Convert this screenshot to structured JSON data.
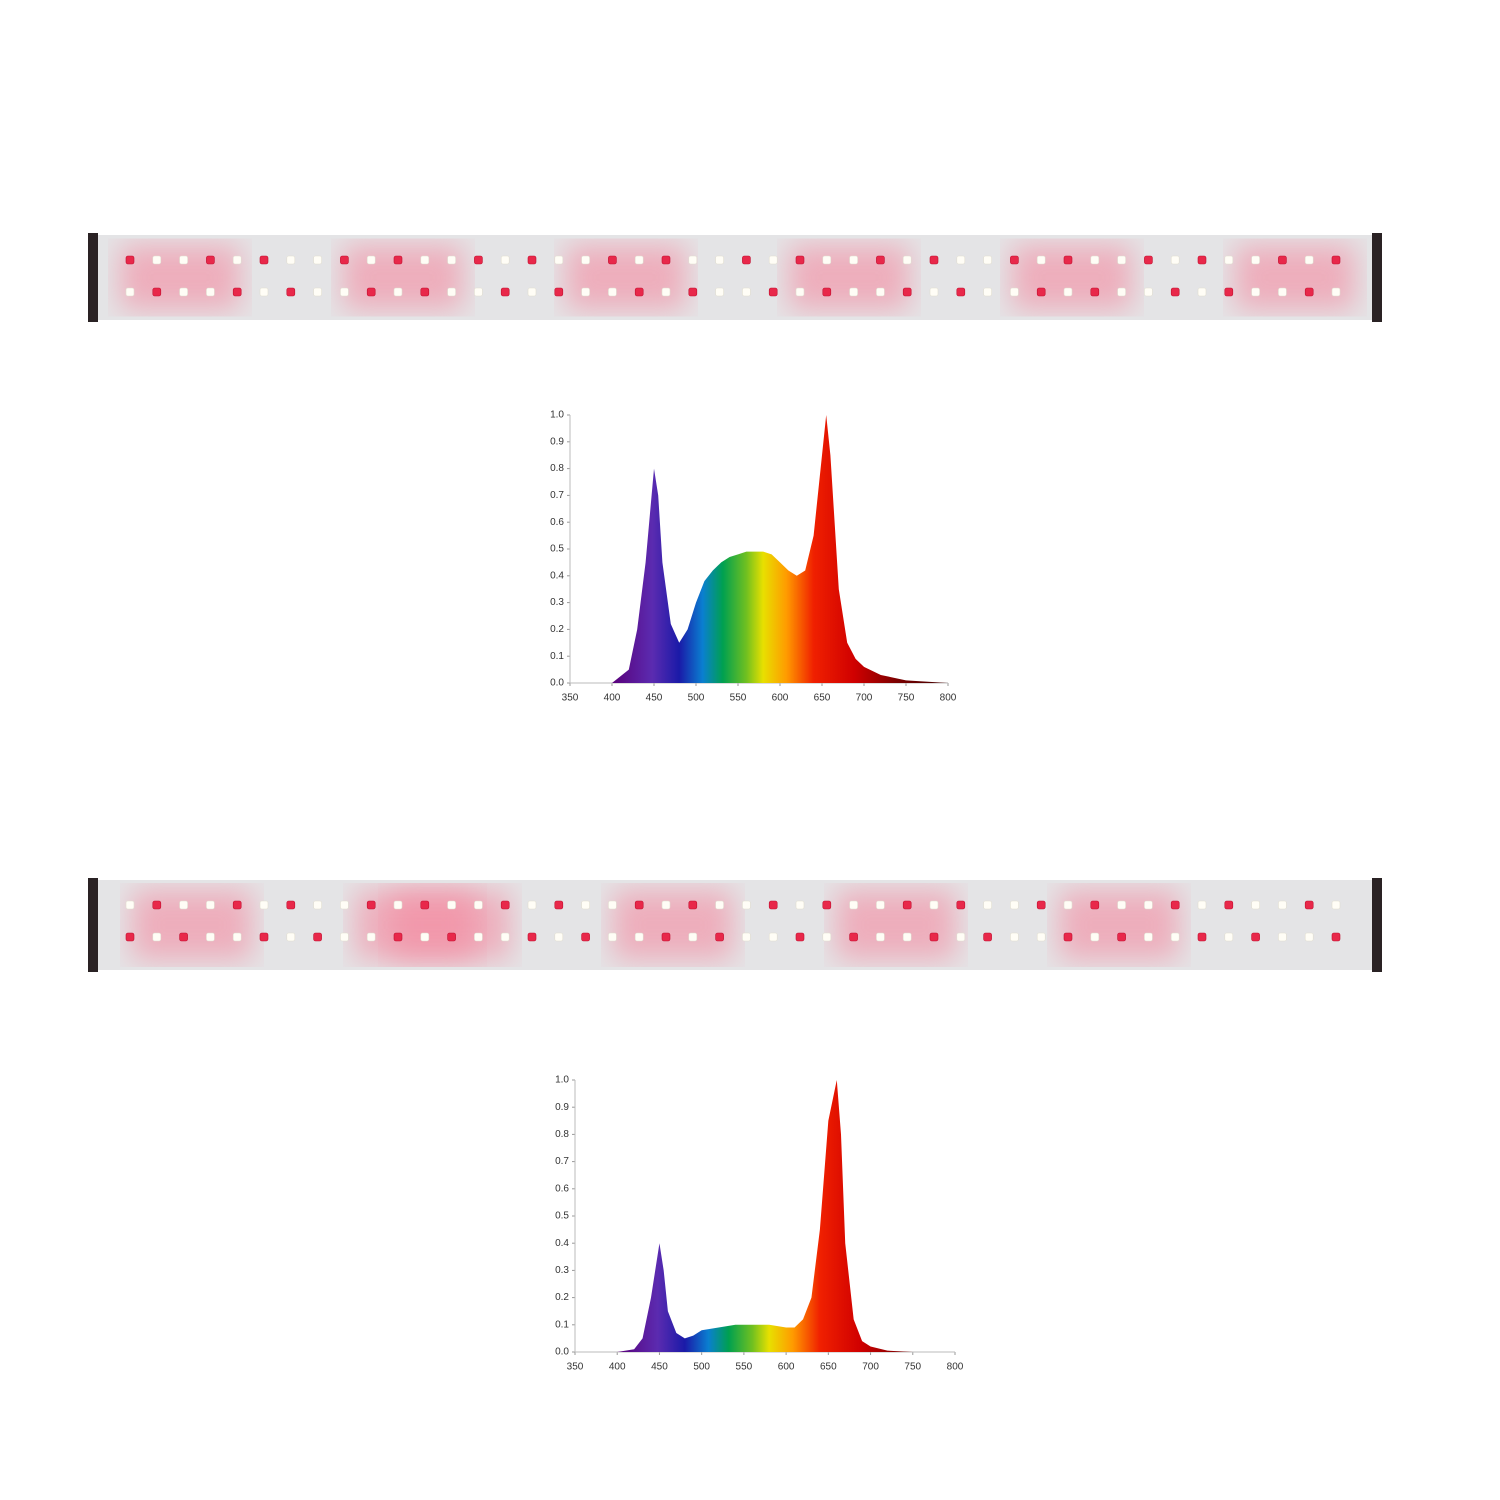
{
  "chart_data": [
    {
      "type": "area",
      "x": [
        400,
        420,
        430,
        440,
        450,
        455,
        460,
        470,
        480,
        490,
        500,
        510,
        520,
        530,
        540,
        550,
        560,
        570,
        580,
        590,
        600,
        610,
        620,
        630,
        640,
        650,
        655,
        660,
        670,
        680,
        690,
        700,
        720,
        750,
        800
      ],
      "values": [
        0,
        0.05,
        0.2,
        0.45,
        0.8,
        0.7,
        0.45,
        0.22,
        0.15,
        0.2,
        0.3,
        0.38,
        0.42,
        0.45,
        0.47,
        0.48,
        0.49,
        0.49,
        0.49,
        0.48,
        0.45,
        0.42,
        0.4,
        0.42,
        0.55,
        0.85,
        1.0,
        0.85,
        0.35,
        0.15,
        0.09,
        0.06,
        0.03,
        0.01,
        0
      ],
      "xlim": [
        350,
        800
      ],
      "xticks": [
        350,
        400,
        450,
        500,
        550,
        600,
        650,
        700,
        750,
        800
      ],
      "ylim": [
        0,
        1
      ],
      "yticks": [
        {
          "value": 0,
          "label": "0.0"
        },
        0.1,
        0.2,
        0.3,
        0.4,
        0.5,
        0.6,
        0.7,
        0.8,
        0.9,
        {
          "value": 1,
          "label": "1.0"
        }
      ]
    },
    {
      "type": "area",
      "x": [
        400,
        420,
        430,
        440,
        450,
        455,
        460,
        470,
        480,
        490,
        500,
        520,
        540,
        560,
        580,
        600,
        610,
        620,
        630,
        640,
        650,
        660,
        665,
        670,
        680,
        690,
        700,
        720,
        750,
        800
      ],
      "values": [
        0,
        0.01,
        0.05,
        0.2,
        0.4,
        0.3,
        0.15,
        0.07,
        0.05,
        0.06,
        0.08,
        0.09,
        0.1,
        0.1,
        0.1,
        0.09,
        0.09,
        0.12,
        0.2,
        0.45,
        0.85,
        1.0,
        0.8,
        0.4,
        0.12,
        0.04,
        0.02,
        0.005,
        0,
        0
      ],
      "xlim": [
        350,
        800
      ],
      "xticks": [
        350,
        400,
        450,
        500,
        550,
        600,
        650,
        700,
        750,
        800
      ],
      "ylim": [
        0,
        1
      ],
      "yticks": [
        {
          "value": 0,
          "label": "0.0"
        },
        0.1,
        0.2,
        0.3,
        0.4,
        0.5,
        0.6,
        0.7,
        0.8,
        0.9,
        {
          "value": 1,
          "label": "1.0"
        }
      ]
    }
  ]
}
